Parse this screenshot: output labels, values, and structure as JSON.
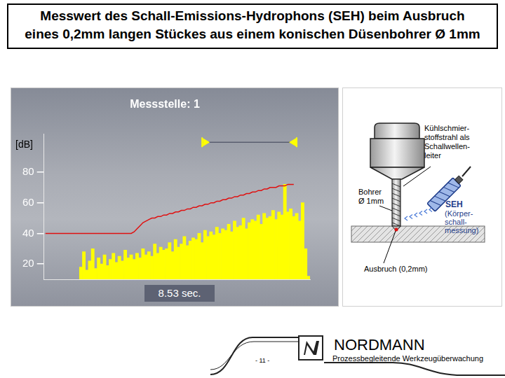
{
  "header": {
    "title": [
      "Messwert des Schall-Emissions-Hydrophons (SEH) beim Ausbruch",
      "eines 0,2mm langen Stückes aus einem konischen Düsenbohrer Ø 1mm"
    ]
  },
  "chart_data": {
    "type": "bar",
    "title": "Messstelle: 1",
    "y_label": "[dB]",
    "categories": [
      null,
      null,
      null,
      null,
      null,
      null,
      null,
      null,
      null,
      null,
      null,
      null,
      null,
      null,
      null,
      null,
      null,
      null,
      null,
      null,
      null,
      null,
      null,
      null,
      null,
      null,
      null,
      null,
      null,
      null,
      null,
      null,
      null,
      null,
      null,
      null,
      null,
      null,
      null,
      null,
      null,
      null,
      null,
      null,
      null,
      null,
      null,
      null,
      null,
      null,
      null,
      null,
      null,
      null,
      null,
      null,
      null,
      null,
      null,
      null,
      null,
      null,
      null,
      null,
      null,
      null,
      null,
      null,
      null,
      null,
      null,
      null,
      null,
      null,
      null,
      null,
      null,
      null,
      null,
      null,
      null,
      null,
      null,
      null,
      null,
      null,
      null,
      null,
      null,
      null
    ],
    "series": [
      {
        "type": "bar",
        "color": "#ffff00",
        "values": [
          null,
          null,
          null,
          null,
          null,
          null,
          null,
          null,
          null,
          null,
          null,
          null,
          18,
          28,
          16,
          22,
          30,
          17,
          24,
          20,
          26,
          19,
          23,
          27,
          21,
          25,
          22,
          29,
          24,
          26,
          23,
          27,
          24,
          30,
          26,
          28,
          25,
          33,
          27,
          31,
          29,
          30,
          34,
          28,
          36,
          31,
          33,
          38,
          32,
          35,
          37,
          36,
          40,
          34,
          42,
          38,
          41,
          39,
          44,
          40,
          43,
          42,
          46,
          41,
          48,
          44,
          45,
          50,
          43,
          47,
          49,
          48,
          52,
          46,
          53,
          50,
          51,
          55,
          49,
          54,
          52,
          72,
          54,
          56,
          51,
          53,
          48,
          60,
          30,
          12
        ]
      },
      {
        "type": "line",
        "color": "#e01010",
        "values": [
          40,
          40,
          40,
          40,
          40,
          40,
          40,
          40,
          40,
          40,
          40,
          40,
          40,
          40,
          40,
          40,
          40,
          40,
          40,
          40,
          40,
          40,
          40,
          40,
          40,
          40,
          40,
          40,
          40,
          40,
          41,
          43,
          45,
          47,
          48,
          49,
          50,
          50,
          51,
          51,
          52,
          52,
          53,
          53,
          54,
          54,
          55,
          55,
          56,
          56,
          57,
          57,
          58,
          58,
          59,
          59,
          60,
          60,
          61,
          61,
          62,
          62,
          63,
          63,
          64,
          64,
          65,
          65,
          66,
          66,
          67,
          67,
          68,
          68,
          69,
          69,
          70,
          70,
          70,
          71,
          71,
          71,
          72,
          72,
          72,
          null,
          null,
          null,
          null,
          null
        ]
      }
    ],
    "ylim": [
      10,
      105
    ],
    "yticks": [
      20,
      40,
      60,
      80
    ],
    "grid": false,
    "tick_labels": "y",
    "span": {
      "start": 53,
      "end": 85,
      "label": "8.53 sec."
    }
  },
  "diagram": {
    "coolant_label": [
      "Kühlschmier-",
      "stoffstrahl als",
      "Schallwellen-",
      "leiter"
    ],
    "drill_label": [
      "Bohrer",
      "Ø 1mm"
    ],
    "sensor_label": "SEH",
    "sensor_note": [
      "(Körper-",
      "schall-",
      "messung)"
    ],
    "breakout_label": "Ausbruch (0,2mm)"
  },
  "footer": {
    "page": "- 11 -",
    "company": "NORDMANN",
    "tagline": "Prozessbegleitende Werkzeugüberwachung"
  }
}
